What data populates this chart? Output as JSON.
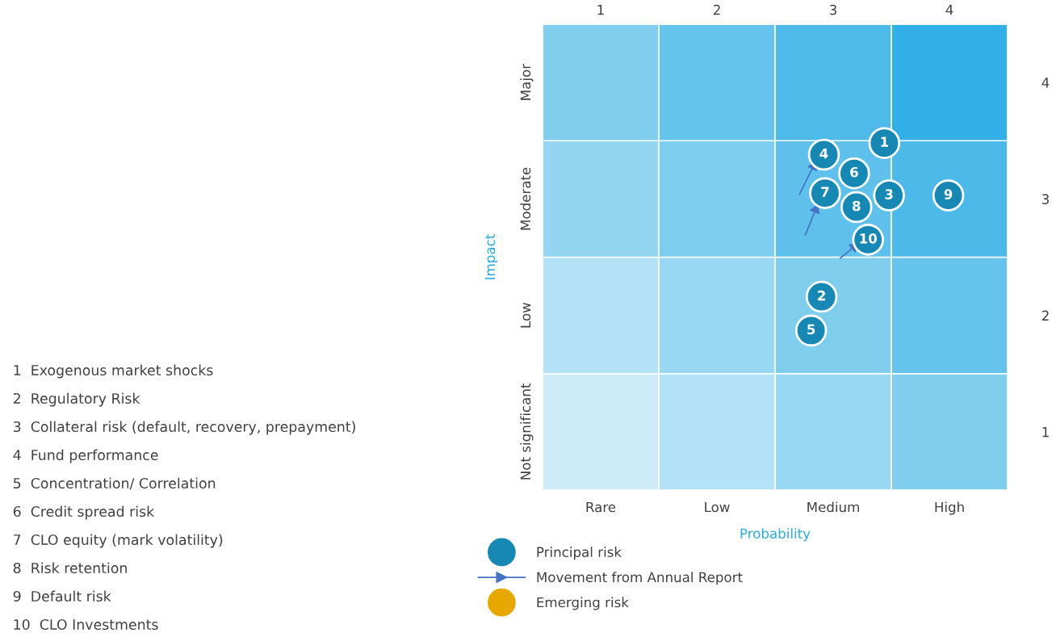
{
  "chart_data": {
    "type": "scatter",
    "xlabel": "Probability",
    "ylabel": "Impact",
    "xlim": [
      0.5,
      4.5
    ],
    "ylim": [
      0.5,
      4.5
    ],
    "xticks": [
      1,
      2,
      3,
      4
    ],
    "yticks": [
      1,
      2,
      3,
      4
    ],
    "grid": false,
    "legend": "bottom left",
    "series": [
      {
        "name": "Principal risk",
        "color": "#1788b4",
        "marker": "circle",
        "x": [
          3.44,
          2.9,
          3.48,
          2.92,
          2.81,
          3.18,
          2.93,
          3.2,
          3.99,
          3.3
        ],
        "values": [
          3.48,
          2.16,
          3.03,
          3.38,
          1.87,
          3.22,
          3.05,
          2.93,
          3.03,
          2.65
        ]
      },
      {
        "name": "Movement from Annual Report",
        "type": "line",
        "color": "#4472c4",
        "marker": "triangle",
        "line_style": "solid",
        "x": [
          2.71,
          2.83,
          null,
          2.76,
          2.85,
          null,
          3.06,
          3.18
        ],
        "values": [
          3.04,
          3.28,
          null,
          2.69,
          2.91,
          null,
          2.49,
          2.59
        ]
      },
      {
        "name": "Emerging risk",
        "color": "#e6a800",
        "marker": "circle"
      }
    ],
    "annotations": [
      {
        "text": "1",
        "x": 3.44,
        "y": 3.48
      },
      {
        "text": "2",
        "x": 2.9,
        "y": 2.16
      },
      {
        "text": "3",
        "x": 3.48,
        "y": 3.03
      },
      {
        "text": "4",
        "x": 2.92,
        "y": 3.38
      },
      {
        "text": "5",
        "x": 2.81,
        "y": 1.87
      },
      {
        "text": "6",
        "x": 3.18,
        "y": 3.22
      },
      {
        "text": "7",
        "x": 2.93,
        "y": 3.05
      },
      {
        "text": "8",
        "x": 3.2,
        "y": 2.93
      },
      {
        "text": "9",
        "x": 3.99,
        "y": 3.03
      },
      {
        "text": "10",
        "x": 3.3,
        "y": 2.65
      },
      "Rare",
      "Low",
      "Medium",
      "High",
      "Not significant",
      "Low",
      "Moderate",
      "Major",
      "1  Exogenous market shocks",
      "2  Regulatory Risk",
      "3  Collateral risk (default, recovery, prepayment)",
      "4  Fund performance",
      "5  Concentration/ Correlation",
      "6  Credit spread risk",
      "7  CLO equity (mark volatility)",
      "8  Risk retention",
      "9  Default risk",
      "10  CLO Investments"
    ]
  }
}
